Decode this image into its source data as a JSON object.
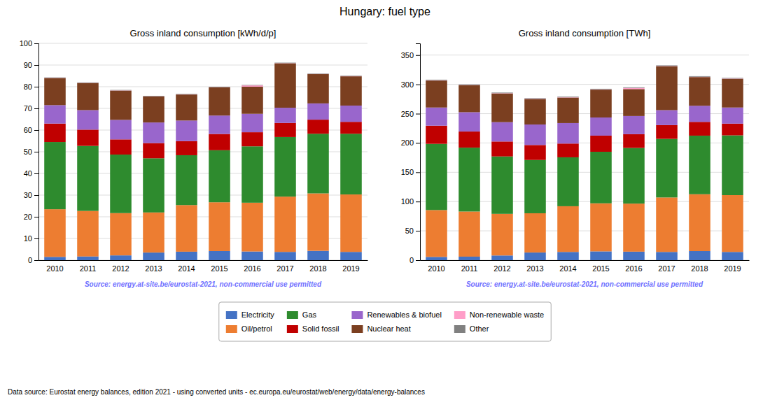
{
  "title": "Hungary: fuel type",
  "footer": "Data source: Eurostat energy balances, edition 2021 - using converted units - ec.europa.eu/eurostat/web/energy/data/energy-balances",
  "chart_data": [
    {
      "type": "bar",
      "stacked": true,
      "grid": true,
      "legend": "bottom",
      "title": "Gross inland consumption [kWh/d/p]",
      "annotations": [
        "Source: energy.at-site.be/eurostat-2021, non-commercial use permitted"
      ],
      "categories": [
        "2010",
        "2011",
        "2012",
        "2013",
        "2014",
        "2015",
        "2016",
        "2017",
        "2018",
        "2019"
      ],
      "ylim": [
        0,
        100
      ],
      "yticks": [
        0,
        10,
        20,
        30,
        40,
        50,
        60,
        70,
        80,
        90,
        100
      ],
      "series": [
        {
          "name": "Electricity",
          "color": "#4472c4",
          "values": [
            1.5,
            1.7,
            2.2,
            3.5,
            3.9,
            4.2,
            4.0,
            3.8,
            4.3,
            3.8
          ]
        },
        {
          "name": "Oil/petrol",
          "color": "#ed7d31",
          "values": [
            22.0,
            21.0,
            19.5,
            18.5,
            21.5,
            22.5,
            22.5,
            25.5,
            26.5,
            26.5
          ]
        },
        {
          "name": "Gas",
          "color": "#2e8b2e",
          "values": [
            31.0,
            30.0,
            27.0,
            25.0,
            23.0,
            24.0,
            26.0,
            27.5,
            27.5,
            28.0
          ]
        },
        {
          "name": "Solid fossil",
          "color": "#c00000",
          "values": [
            8.5,
            7.5,
            7.0,
            7.0,
            6.5,
            7.5,
            6.5,
            6.5,
            6.5,
            5.5
          ]
        },
        {
          "name": "Renewables & biofuel",
          "color": "#9966cc",
          "values": [
            8.5,
            9.0,
            9.0,
            9.5,
            9.5,
            8.5,
            8.5,
            7.0,
            7.5,
            7.5
          ]
        },
        {
          "name": "Nuclear heat",
          "color": "#7b3f20",
          "values": [
            12.5,
            12.5,
            13.5,
            12.0,
            12.0,
            13.0,
            12.5,
            20.5,
            13.5,
            13.5
          ]
        },
        {
          "name": "Non-renewable waste",
          "color": "#ff9ec8",
          "values": [
            0.1,
            0.1,
            0.1,
            0.1,
            0.1,
            0.1,
            0.6,
            0.1,
            0.1,
            0.1
          ]
        },
        {
          "name": "Other",
          "color": "#808080",
          "values": [
            0.2,
            0.2,
            0.2,
            0.2,
            0.2,
            0.2,
            0.2,
            0.2,
            0.2,
            0.2
          ]
        }
      ]
    },
    {
      "type": "bar",
      "stacked": true,
      "grid": true,
      "title": "Gross inland consumption [TWh]",
      "annotations": [
        "Source: energy.at-site.be/eurostat-2021, non-commercial use permitted"
      ],
      "categories": [
        "2010",
        "2011",
        "2012",
        "2013",
        "2014",
        "2015",
        "2016",
        "2017",
        "2018",
        "2019"
      ],
      "ylim": [
        0,
        370
      ],
      "yticks": [
        0,
        50,
        100,
        150,
        200,
        250,
        300,
        350
      ],
      "series": [
        {
          "name": "Electricity",
          "color": "#4472c4",
          "values": [
            5.5,
            6.0,
            8.0,
            13.0,
            14.0,
            15.0,
            14.5,
            14.0,
            15.5,
            14.0
          ]
        },
        {
          "name": "Oil/petrol",
          "color": "#ed7d31",
          "values": [
            80.0,
            77.0,
            71.0,
            67.0,
            78.0,
            82.0,
            82.0,
            93.0,
            97.0,
            97.0
          ]
        },
        {
          "name": "Gas",
          "color": "#2e8b2e",
          "values": [
            113.0,
            109.0,
            98.0,
            91.0,
            83.5,
            88.0,
            95.0,
            100.0,
            100.0,
            102.0
          ]
        },
        {
          "name": "Solid fossil",
          "color": "#c00000",
          "values": [
            31.0,
            27.5,
            25.5,
            25.5,
            23.5,
            27.5,
            23.5,
            23.5,
            23.5,
            20.0
          ]
        },
        {
          "name": "Renewables & biofuel",
          "color": "#9966cc",
          "values": [
            31.0,
            33.0,
            33.0,
            35.0,
            35.0,
            31.0,
            31.0,
            25.5,
            27.5,
            27.5
          ]
        },
        {
          "name": "Nuclear heat",
          "color": "#7b3f20",
          "values": [
            46.0,
            46.0,
            49.0,
            43.5,
            43.5,
            47.5,
            46.0,
            75.0,
            49.0,
            49.0
          ]
        },
        {
          "name": "Non-renewable waste",
          "color": "#ff9ec8",
          "values": [
            0.5,
            0.5,
            0.5,
            0.5,
            0.5,
            0.5,
            2.0,
            0.5,
            0.5,
            0.5
          ]
        },
        {
          "name": "Other",
          "color": "#808080",
          "values": [
            1.0,
            1.0,
            1.0,
            1.0,
            1.0,
            1.0,
            1.0,
            1.0,
            1.0,
            1.0
          ]
        }
      ]
    }
  ]
}
